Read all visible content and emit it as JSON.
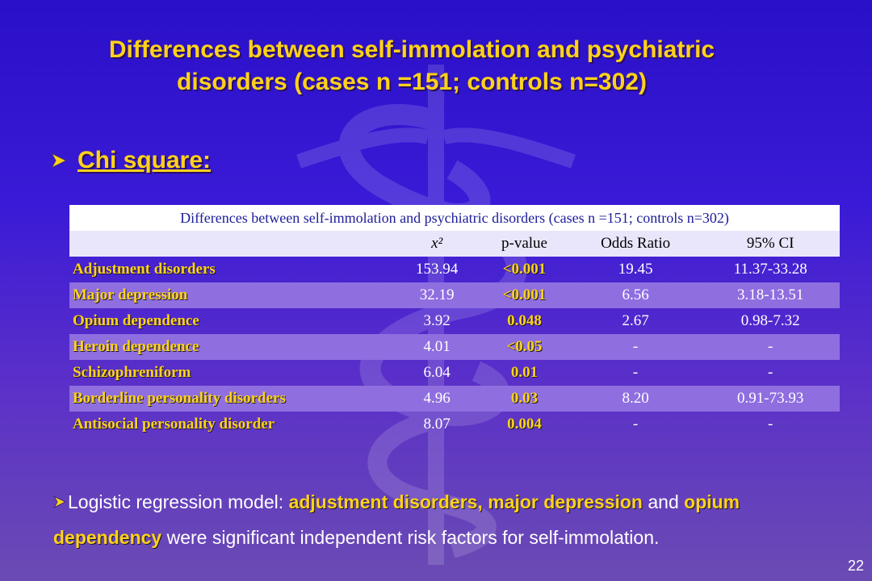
{
  "slide": {
    "title_line1": "Differences between self-immolation and psychiatric",
    "title_line2": "disorders (cases n =151; controls n=302)",
    "section_heading": "Chi square:",
    "slide_number": "22"
  },
  "table": {
    "caption": "Differences between self-immolation and psychiatric disorders (cases n =151; controls n=302)",
    "columns": [
      "",
      "x²",
      "p-value",
      "Odds Ratio",
      "95% CI"
    ],
    "rows": [
      [
        "Adjustment disorders",
        "153.94",
        "<0.001",
        "19.45",
        "11.37-33.28"
      ],
      [
        "Major depression",
        "32.19",
        "<0.001",
        "6.56",
        "3.18-13.51"
      ],
      [
        "Opium dependence",
        "3.92",
        "0.048",
        "2.67",
        "0.98-7.32"
      ],
      [
        "Heroin dependence",
        "4.01",
        "<0.05",
        "-",
        "-"
      ],
      [
        "Schizophreniform",
        "6.04",
        "0.01",
        "-",
        "-"
      ],
      [
        "Borderline personality disorders",
        "4.96",
        "0.03",
        "8.20",
        "0.91-73.93"
      ],
      [
        "Antisocial personality disorder",
        "8.07",
        "0.004",
        "-",
        "-"
      ]
    ]
  },
  "note": {
    "part1": "Logistic regression model: ",
    "hl1": "adjustment disorders, major depression",
    "part2": " and ",
    "hl2": "opium dependency",
    "part3": " were significant independent risk factors for self-immolation."
  },
  "icons": {
    "bullet": "arrow-bullet-icon",
    "background": "caduceus-emblem-icon"
  },
  "colors": {
    "accent_yellow": "#ffd21a",
    "background_top": "#2a10c8",
    "background_bottom": "#6b4bb3",
    "band_row": "#8f6ee0"
  }
}
